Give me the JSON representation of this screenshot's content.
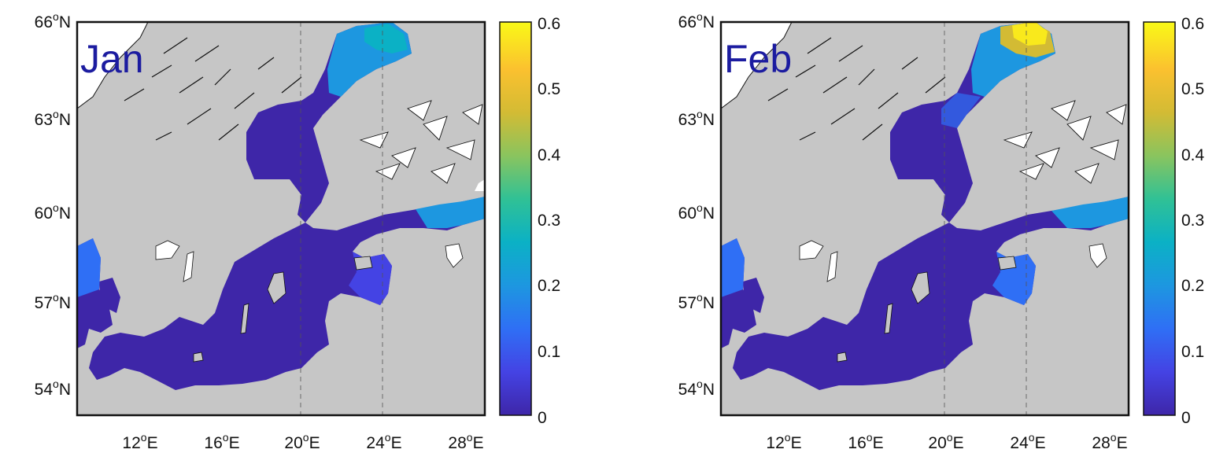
{
  "figure": {
    "colormap": [
      "#3e26a8",
      "#4443e4",
      "#2f6ff5",
      "#1d97e0",
      "#0bb1c5",
      "#30c195",
      "#8ac45e",
      "#d3bb34",
      "#fbc12f",
      "#f9f917"
    ],
    "land_color": "#c6c6c6",
    "lakes_color": "#ffffff",
    "panels": [
      {
        "month": "Jan",
        "lat_ticks": [
          {
            "deg": "66",
            "suffix": "N"
          },
          {
            "deg": "63",
            "suffix": "N"
          },
          {
            "deg": "60",
            "suffix": "N"
          },
          {
            "deg": "57",
            "suffix": "N"
          },
          {
            "deg": "54",
            "suffix": "N"
          }
        ],
        "lon_ticks": [
          {
            "deg": "12",
            "suffix": "E"
          },
          {
            "deg": "16",
            "suffix": "E"
          },
          {
            "deg": "20",
            "suffix": "E"
          },
          {
            "deg": "24",
            "suffix": "E"
          },
          {
            "deg": "28",
            "suffix": "E"
          }
        ],
        "colorbar_ticks": [
          "0.6",
          "0.5",
          "0.4",
          "0.3",
          "0.2",
          "0.1",
          "0"
        ],
        "colorbar_range": [
          0,
          0.6
        ],
        "bothnian_bay_level": 0.35,
        "gulf_of_finland_level": 0.18,
        "kattegat_level": 0.12
      },
      {
        "month": "Feb",
        "lat_ticks": [
          {
            "deg": "66",
            "suffix": "N"
          },
          {
            "deg": "63",
            "suffix": "N"
          },
          {
            "deg": "60",
            "suffix": "N"
          },
          {
            "deg": "57",
            "suffix": "N"
          },
          {
            "deg": "54",
            "suffix": "N"
          }
        ],
        "lon_ticks": [
          {
            "deg": "12",
            "suffix": "E"
          },
          {
            "deg": "16",
            "suffix": "E"
          },
          {
            "deg": "20",
            "suffix": "E"
          },
          {
            "deg": "24",
            "suffix": "E"
          },
          {
            "deg": "28",
            "suffix": "E"
          }
        ],
        "colorbar_ticks": [
          "0.6",
          "0.5",
          "0.4",
          "0.3",
          "0.2",
          "0.1",
          "0"
        ],
        "colorbar_range": [
          0,
          0.6
        ],
        "bothnian_bay_level": 0.55,
        "gulf_of_finland_level": 0.2,
        "kattegat_level": 0.1
      }
    ]
  }
}
